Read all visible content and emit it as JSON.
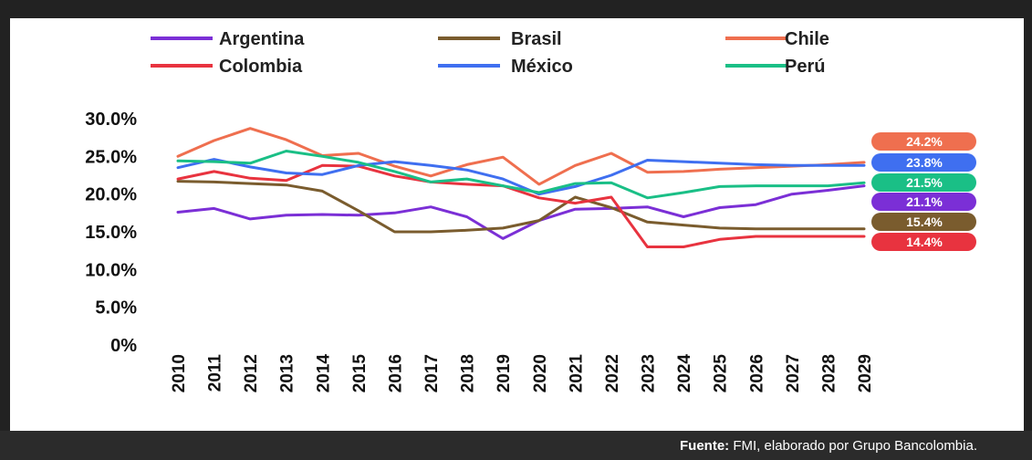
{
  "source_prefix": "Fuente:",
  "source_text": " FMI, elaborado por Grupo Bancolombia.",
  "chart_data": {
    "type": "line",
    "x": [
      "2010",
      "2011",
      "2012",
      "2013",
      "2014",
      "2015",
      "2016",
      "2017",
      "2018",
      "2019",
      "2020",
      "2021",
      "2022",
      "2023",
      "2024",
      "2025",
      "2026",
      "2027",
      "2028",
      "2029"
    ],
    "ylim": [
      0,
      30
    ],
    "yticks": [
      "0%",
      "5.0%",
      "10.0%",
      "15.0%",
      "20.0%",
      "25.0%",
      "30.0%"
    ],
    "ytick_values": [
      0,
      5,
      10,
      15,
      20,
      25,
      30
    ],
    "legend_position": "top",
    "series": [
      {
        "name": "Argentina",
        "color": "#7b2fd6",
        "values": [
          17.6,
          18.1,
          16.7,
          17.2,
          17.3,
          17.2,
          17.5,
          18.3,
          17.0,
          14.1,
          16.5,
          18.0,
          18.1,
          18.3,
          17.0,
          18.2,
          18.6,
          20.0,
          20.5,
          21.1
        ],
        "end_label": "21.1%"
      },
      {
        "name": "Brasil",
        "color": "#7a5c2e",
        "values": [
          21.7,
          21.6,
          21.4,
          21.2,
          20.4,
          17.8,
          15.0,
          15.0,
          15.2,
          15.5,
          16.5,
          19.6,
          18.2,
          16.3,
          15.9,
          15.5,
          15.4,
          15.4,
          15.4,
          15.4
        ],
        "end_label": "15.4%"
      },
      {
        "name": "Chile",
        "color": "#ef6f4f",
        "values": [
          25.0,
          27.1,
          28.7,
          27.2,
          25.1,
          25.4,
          23.7,
          22.4,
          23.9,
          24.9,
          21.3,
          23.8,
          25.4,
          22.9,
          23.0,
          23.3,
          23.5,
          23.7,
          23.9,
          24.2
        ],
        "end_label": "24.2%"
      },
      {
        "name": "Colombia",
        "color": "#e8333f",
        "values": [
          22.0,
          23.0,
          22.1,
          21.8,
          23.8,
          23.7,
          22.4,
          21.6,
          21.3,
          21.1,
          19.5,
          18.8,
          19.6,
          13.0,
          13.0,
          14.0,
          14.4,
          14.4,
          14.4,
          14.4
        ],
        "end_label": "14.4%"
      },
      {
        "name": "México",
        "color": "#3f6ff0",
        "values": [
          23.5,
          24.6,
          23.6,
          22.8,
          22.6,
          23.8,
          24.3,
          23.8,
          23.2,
          22.0,
          20.0,
          21.0,
          22.5,
          24.5,
          24.3,
          24.1,
          23.9,
          23.8,
          23.8,
          23.8
        ],
        "end_label": "23.8%"
      },
      {
        "name": "Perú",
        "color": "#1abf86",
        "values": [
          24.4,
          24.3,
          24.1,
          25.7,
          25.0,
          24.2,
          23.0,
          21.6,
          22.0,
          21.1,
          20.2,
          21.4,
          21.5,
          19.5,
          20.2,
          21.0,
          21.1,
          21.1,
          21.1,
          21.5
        ],
        "end_label": "21.5%"
      }
    ],
    "label_order": [
      "Chile",
      "México",
      "Perú",
      "Argentina",
      "Brasil",
      "Colombia"
    ]
  }
}
